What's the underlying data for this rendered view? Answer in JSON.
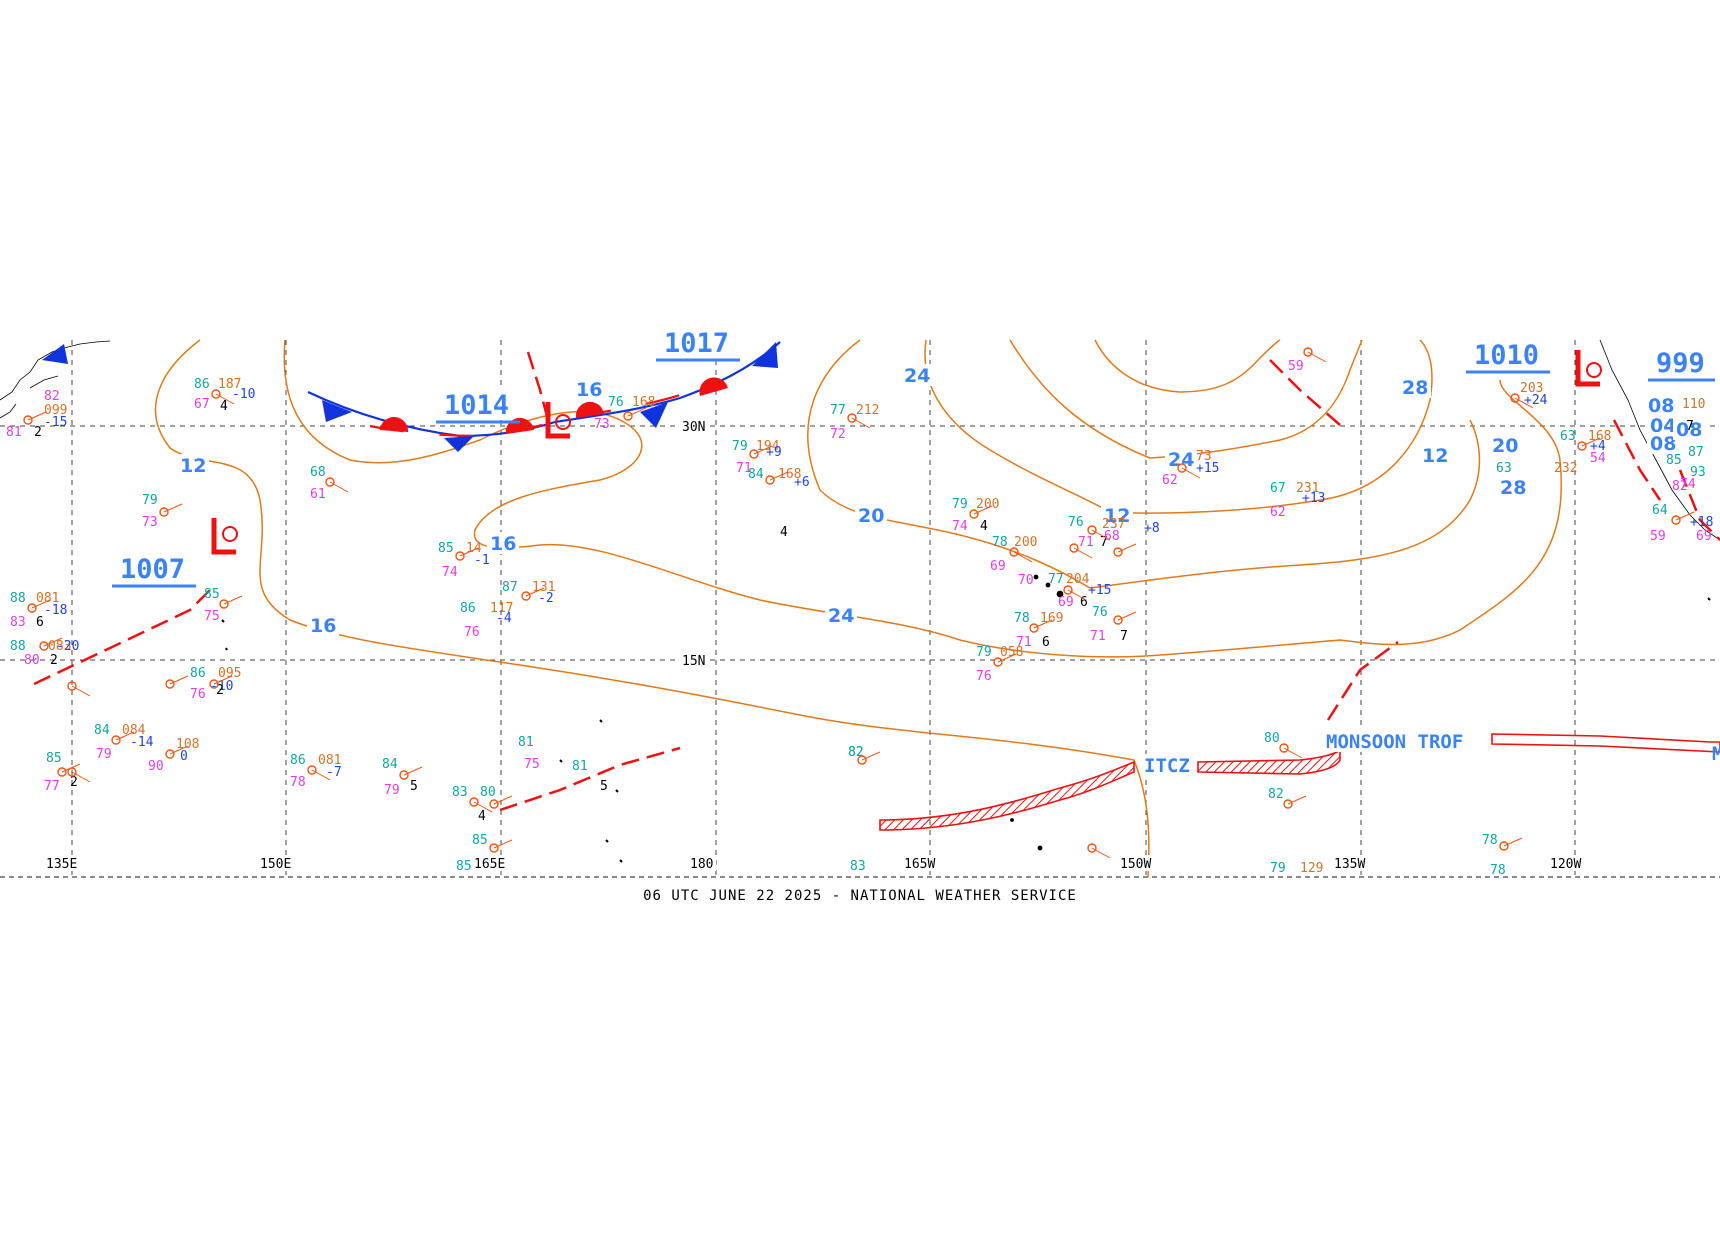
{
  "caption": "06 UTC JUNE 22 2025 - NATIONAL WEATHER SERVICE",
  "colors": {
    "isobar": "#e07a1a",
    "label_blue": "#3b82f6",
    "low_red": "#ee1111",
    "front_blue": "#1133dd",
    "grid": "#444444",
    "temp_teal": "#15a3a3",
    "dew_magenta": "#e040e0",
    "press_orange": "#d4722a"
  },
  "longitude_labels": [
    "135E",
    "150E",
    "165E",
    "180",
    "165W",
    "150W",
    "135W",
    "120W"
  ],
  "latitude_labels": [
    "30N",
    "15N"
  ],
  "isobar_labels": [
    "24",
    "28",
    "12",
    "16",
    "20",
    "16",
    "24",
    "12",
    "20",
    "28",
    "24",
    "12",
    "16",
    "04",
    "08",
    "08",
    "08"
  ],
  "pressure_centers": [
    {
      "type": "L",
      "value": "1007"
    },
    {
      "type": "L",
      "value": "1014"
    },
    {
      "type": "H",
      "value": "1017"
    },
    {
      "type": "L",
      "value": "1010"
    },
    {
      "type": "L",
      "value": "999"
    }
  ],
  "features": [
    "ITCZ",
    "MONSOON TROF"
  ],
  "obs_text": [
    {
      "t": "86",
      "c": "t"
    },
    {
      "t": "187",
      "c": "p"
    },
    {
      "t": "67",
      "c": "d"
    },
    {
      "t": "-10",
      "c": "b"
    },
    {
      "t": "4",
      "c": "k"
    },
    {
      "t": "82",
      "c": "d"
    },
    {
      "t": "099",
      "c": "p"
    },
    {
      "t": "-15",
      "c": "b"
    },
    {
      "t": "81",
      "c": "d"
    },
    {
      "t": "2",
      "c": "k"
    },
    {
      "t": "79",
      "c": "t"
    },
    {
      "t": "73",
      "c": "d"
    },
    {
      "t": "88",
      "c": "t"
    },
    {
      "t": "081",
      "c": "p"
    },
    {
      "t": "-18",
      "c": "b"
    },
    {
      "t": "83",
      "c": "d"
    },
    {
      "t": "6",
      "c": "k"
    },
    {
      "t": "88",
      "c": "t"
    },
    {
      "t": "083",
      "c": "p"
    },
    {
      "t": "-20",
      "c": "b"
    },
    {
      "t": "80",
      "c": "d"
    },
    {
      "t": "2",
      "c": "k"
    },
    {
      "t": "85",
      "c": "t"
    },
    {
      "t": "75",
      "c": "d"
    },
    {
      "t": "86",
      "c": "t"
    },
    {
      "t": "095",
      "c": "p"
    },
    {
      "t": "-10",
      "c": "b"
    },
    {
      "t": "76",
      "c": "d"
    },
    {
      "t": "2",
      "c": "k"
    },
    {
      "t": "84",
      "c": "t"
    },
    {
      "t": "084",
      "c": "p"
    },
    {
      "t": "-14",
      "c": "b"
    },
    {
      "t": "79",
      "c": "d"
    },
    {
      "t": "108",
      "c": "p"
    },
    {
      "t": "0",
      "c": "b"
    },
    {
      "t": "90",
      "c": "d"
    },
    {
      "t": "85",
      "c": "t"
    },
    {
      "t": "77",
      "c": "d"
    },
    {
      "t": "2",
      "c": "k"
    },
    {
      "t": "68",
      "c": "t"
    },
    {
      "t": "61",
      "c": "d"
    },
    {
      "t": "85",
      "c": "t"
    },
    {
      "t": "14",
      "c": "p"
    },
    {
      "t": "-1",
      "c": "b"
    },
    {
      "t": "74",
      "c": "d"
    },
    {
      "t": "87",
      "c": "t"
    },
    {
      "t": "131",
      "c": "p"
    },
    {
      "t": "-2",
      "c": "b"
    },
    {
      "t": "86",
      "c": "t"
    },
    {
      "t": "117",
      "c": "p"
    },
    {
      "t": "-4",
      "c": "b"
    },
    {
      "t": "76",
      "c": "d"
    },
    {
      "t": "86",
      "c": "t"
    },
    {
      "t": "081",
      "c": "p"
    },
    {
      "t": "-7",
      "c": "b"
    },
    {
      "t": "78",
      "c": "d"
    },
    {
      "t": "84",
      "c": "t"
    },
    {
      "t": "79",
      "c": "d"
    },
    {
      "t": "5",
      "c": "k"
    },
    {
      "t": "81",
      "c": "t"
    },
    {
      "t": "75",
      "c": "d"
    },
    {
      "t": "81",
      "c": "t"
    },
    {
      "t": "5",
      "c": "k"
    },
    {
      "t": "83",
      "c": "t"
    },
    {
      "t": "80",
      "c": "t"
    },
    {
      "t": "4",
      "c": "k"
    },
    {
      "t": "85",
      "c": "t"
    },
    {
      "t": "85",
      "c": "t"
    },
    {
      "t": "76",
      "c": "t"
    },
    {
      "t": "168",
      "c": "p"
    },
    {
      "t": "73",
      "c": "d"
    },
    {
      "t": "77",
      "c": "t"
    },
    {
      "t": "212",
      "c": "p"
    },
    {
      "t": "72",
      "c": "d"
    },
    {
      "t": "79",
      "c": "t"
    },
    {
      "t": "194",
      "c": "p"
    },
    {
      "t": "+9",
      "c": "b"
    },
    {
      "t": "71",
      "c": "d"
    },
    {
      "t": "84",
      "c": "t"
    },
    {
      "t": "168",
      "c": "p"
    },
    {
      "t": "+6",
      "c": "b"
    },
    {
      "t": "4",
      "c": "k"
    },
    {
      "t": "82",
      "c": "t"
    },
    {
      "t": "83",
      "c": "t"
    },
    {
      "t": "79",
      "c": "t"
    },
    {
      "t": "200",
      "c": "p"
    },
    {
      "t": "74",
      "c": "d"
    },
    {
      "t": "4",
      "c": "k"
    },
    {
      "t": "78",
      "c": "t"
    },
    {
      "t": "200",
      "c": "p"
    },
    {
      "t": "69",
      "c": "d"
    },
    {
      "t": "70",
      "c": "d"
    },
    {
      "t": "76",
      "c": "t"
    },
    {
      "t": "71",
      "c": "d"
    },
    {
      "t": "7",
      "c": "k"
    },
    {
      "t": "68",
      "c": "d"
    },
    {
      "t": "237",
      "c": "p"
    },
    {
      "t": "+8",
      "c": "b"
    },
    {
      "t": "77",
      "c": "t"
    },
    {
      "t": "204",
      "c": "p"
    },
    {
      "t": "+15",
      "c": "b"
    },
    {
      "t": "69",
      "c": "d"
    },
    {
      "t": "6",
      "c": "k"
    },
    {
      "t": "78",
      "c": "t"
    },
    {
      "t": "169",
      "c": "p"
    },
    {
      "t": "71",
      "c": "d"
    },
    {
      "t": "6",
      "c": "k"
    },
    {
      "t": "76",
      "c": "t"
    },
    {
      "t": "71",
      "c": "d"
    },
    {
      "t": "7",
      "c": "k"
    },
    {
      "t": "79",
      "c": "t"
    },
    {
      "t": "058",
      "c": "p"
    },
    {
      "t": "76",
      "c": "d"
    },
    {
      "t": "82",
      "c": "t"
    },
    {
      "t": "73",
      "c": "p"
    },
    {
      "t": "+15",
      "c": "b"
    },
    {
      "t": "62",
      "c": "d"
    },
    {
      "t": "67",
      "c": "t"
    },
    {
      "t": "231",
      "c": "p"
    },
    {
      "t": "+13",
      "c": "b"
    },
    {
      "t": "62",
      "c": "d"
    },
    {
      "t": "59",
      "c": "d"
    },
    {
      "t": "80",
      "c": "t"
    },
    {
      "t": "82",
      "c": "t"
    },
    {
      "t": "79",
      "c": "t"
    },
    {
      "t": "129",
      "c": "p"
    },
    {
      "t": "78",
      "c": "t"
    },
    {
      "t": "78",
      "c": "t"
    },
    {
      "t": "203",
      "c": "p"
    },
    {
      "t": "+24",
      "c": "b"
    },
    {
      "t": "63",
      "c": "t"
    },
    {
      "t": "232",
      "c": "p"
    },
    {
      "t": "63",
      "c": "t"
    },
    {
      "t": "168",
      "c": "p"
    },
    {
      "t": "+4",
      "c": "b"
    },
    {
      "t": "54",
      "c": "d"
    },
    {
      "t": "64",
      "c": "t"
    },
    {
      "t": "59",
      "c": "d"
    },
    {
      "t": "+18",
      "c": "b"
    },
    {
      "t": "69",
      "c": "d"
    },
    {
      "t": "85",
      "c": "t"
    },
    {
      "t": "87",
      "c": "t"
    },
    {
      "t": "93",
      "c": "t"
    },
    {
      "t": "82",
      "c": "d"
    },
    {
      "t": "110",
      "c": "p"
    },
    {
      "t": "7",
      "c": "k"
    },
    {
      "t": "74",
      "c": "d"
    }
  ]
}
